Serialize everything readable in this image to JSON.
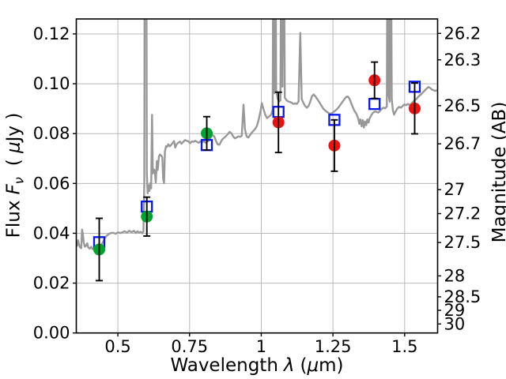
{
  "figure": {
    "background": "#ffffff",
    "xlabel": {
      "word": "Wavelength",
      "symbol": "λ",
      "unit_open": "(",
      "unit_mu": "μ",
      "unit_close": "m)"
    },
    "ylabel": {
      "word": "Flux",
      "symbol": "F",
      "symbol_sub": "ν",
      "unit_open": "( ",
      "unit_mu": "μ",
      "unit_close": "Jy )"
    },
    "ylabel_right": "Magnitude (AB)"
  },
  "chart_data": {
    "type": "line+scatter",
    "title": "",
    "xlabel": "Wavelength λ (μm)",
    "ylabel_left": "Flux Fν ( μJy )",
    "ylabel_right": "Magnitude (AB)",
    "xlim": [
      0.355,
      1.615
    ],
    "ylim": [
      0,
      0.126
    ],
    "grid": true,
    "legend": "none",
    "colors": {
      "spectrum": "#989898",
      "green": "#00A42E",
      "red": "#F01010",
      "blue": "#0516EE",
      "grid": "#b9b9b9",
      "axis": "#000000",
      "errorbar": "#000000"
    },
    "x_ticks": [
      {
        "value": 0.5,
        "label": "0.5"
      },
      {
        "value": 0.75,
        "label": "0.75"
      },
      {
        "value": 1.0,
        "label": "1"
      },
      {
        "value": 1.25,
        "label": "1.25"
      },
      {
        "value": 1.5,
        "label": "1.5"
      }
    ],
    "y_ticks_left": [
      {
        "value": 0.0,
        "label": "0.00"
      },
      {
        "value": 0.02,
        "label": "0.02"
      },
      {
        "value": 0.04,
        "label": "0.04"
      },
      {
        "value": 0.06,
        "label": "0.06"
      },
      {
        "value": 0.08,
        "label": "0.08"
      },
      {
        "value": 0.1,
        "label": "0.10"
      },
      {
        "value": 0.12,
        "label": "0.12"
      }
    ],
    "y_ticks_right": [
      {
        "label": "26.2",
        "flux": 0.1202
      },
      {
        "label": "26.3",
        "flux": 0.1096
      },
      {
        "label": "26.5",
        "flux": 0.0912
      },
      {
        "label": "26.7",
        "flux": 0.0759
      },
      {
        "label": "27",
        "flux": 0.0575
      },
      {
        "label": "27.2",
        "flux": 0.0479
      },
      {
        "label": "27.5",
        "flux": 0.0363
      },
      {
        "label": "28",
        "flux": 0.0229
      },
      {
        "label": "28.5",
        "flux": 0.0145
      },
      {
        "label": "29",
        "flux": 0.0091
      },
      {
        "label": "30",
        "flux": 0.0036
      }
    ],
    "series": {
      "photometry_observed": [
        {
          "x": 0.435,
          "y": 0.0335,
          "yerr": 0.0125,
          "color_key": "green"
        },
        {
          "x": 0.601,
          "y": 0.0467,
          "yerr": 0.0078,
          "color_key": "green"
        },
        {
          "x": 0.81,
          "y": 0.0801,
          "yerr": 0.0067,
          "color_key": "green"
        },
        {
          "x": 1.06,
          "y": 0.0845,
          "yerr": 0.0121,
          "color_key": "red"
        },
        {
          "x": 1.255,
          "y": 0.0752,
          "yerr": 0.0103,
          "color_key": "red"
        },
        {
          "x": 1.395,
          "y": 0.1014,
          "yerr": 0.0073,
          "color_key": "red"
        },
        {
          "x": 1.535,
          "y": 0.0901,
          "yerr": 0.0102,
          "color_key": "red"
        }
      ],
      "photometry_model": [
        {
          "x": 0.435,
          "y": 0.0364
        },
        {
          "x": 0.601,
          "y": 0.0507
        },
        {
          "x": 0.81,
          "y": 0.0754
        },
        {
          "x": 1.06,
          "y": 0.0887
        },
        {
          "x": 1.255,
          "y": 0.0855
        },
        {
          "x": 1.395,
          "y": 0.0919
        },
        {
          "x": 1.535,
          "y": 0.0988
        }
      ],
      "spectrum": [
        [
          0.355,
          0.0358
        ],
        [
          0.358,
          0.035
        ],
        [
          0.361,
          0.0372
        ],
        [
          0.364,
          0.0356
        ],
        [
          0.368,
          0.0344
        ],
        [
          0.372,
          0.034
        ],
        [
          0.375,
          0.0415
        ],
        [
          0.378,
          0.0398
        ],
        [
          0.381,
          0.0362
        ],
        [
          0.385,
          0.0346
        ],
        [
          0.389,
          0.035
        ],
        [
          0.393,
          0.036
        ],
        [
          0.397,
          0.0343
        ],
        [
          0.402,
          0.0338
        ],
        [
          0.407,
          0.0346
        ],
        [
          0.412,
          0.0336
        ],
        [
          0.418,
          0.0341
        ],
        [
          0.424,
          0.0334
        ],
        [
          0.43,
          0.0337
        ],
        [
          0.436,
          0.0343
        ],
        [
          0.442,
          0.0351
        ],
        [
          0.448,
          0.0364
        ],
        [
          0.454,
          0.0379
        ],
        [
          0.461,
          0.039
        ],
        [
          0.468,
          0.0397
        ],
        [
          0.476,
          0.0401
        ],
        [
          0.484,
          0.0402
        ],
        [
          0.492,
          0.0398
        ],
        [
          0.5,
          0.0404
        ],
        [
          0.508,
          0.0401
        ],
        [
          0.516,
          0.0404
        ],
        [
          0.524,
          0.0408
        ],
        [
          0.532,
          0.0403
        ],
        [
          0.54,
          0.041
        ],
        [
          0.548,
          0.0404
        ],
        [
          0.556,
          0.041
        ],
        [
          0.562,
          0.0401
        ],
        [
          0.568,
          0.0408
        ],
        [
          0.574,
          0.0403
        ],
        [
          0.58,
          0.0406
        ],
        [
          0.585,
          0.04
        ],
        [
          0.589,
          0.0406
        ],
        [
          0.592,
          0.06
        ],
        [
          0.594,
          0.2
        ],
        [
          0.599,
          0.2
        ],
        [
          0.601,
          0.064
        ],
        [
          0.604,
          0.056
        ],
        [
          0.607,
          0.0592
        ],
        [
          0.61,
          0.057
        ],
        [
          0.613,
          0.0601
        ],
        [
          0.616,
          0.058
        ],
        [
          0.619,
          0.0875
        ],
        [
          0.622,
          0.064
        ],
        [
          0.626,
          0.0656
        ],
        [
          0.629,
          0.0648
        ],
        [
          0.632,
          0.0604
        ],
        [
          0.636,
          0.069
        ],
        [
          0.639,
          0.0654
        ],
        [
          0.643,
          0.0708
        ],
        [
          0.647,
          0.0716
        ],
        [
          0.651,
          0.0712
        ],
        [
          0.655,
          0.0704
        ],
        [
          0.658,
          0.0618
        ],
        [
          0.661,
          0.0601
        ],
        [
          0.664,
          0.0728
        ],
        [
          0.668,
          0.075
        ],
        [
          0.672,
          0.0747
        ],
        [
          0.676,
          0.0757
        ],
        [
          0.681,
          0.0749
        ],
        [
          0.686,
          0.0755
        ],
        [
          0.691,
          0.0763
        ],
        [
          0.696,
          0.077
        ],
        [
          0.7,
          0.0744
        ],
        [
          0.705,
          0.0757
        ],
        [
          0.71,
          0.0763
        ],
        [
          0.716,
          0.0768
        ],
        [
          0.722,
          0.0759
        ],
        [
          0.728,
          0.0767
        ],
        [
          0.734,
          0.0774
        ],
        [
          0.74,
          0.0771
        ],
        [
          0.746,
          0.0769
        ],
        [
          0.752,
          0.0761
        ],
        [
          0.758,
          0.0769
        ],
        [
          0.764,
          0.0767
        ],
        [
          0.77,
          0.0771
        ],
        [
          0.776,
          0.0767
        ],
        [
          0.782,
          0.0763
        ],
        [
          0.788,
          0.0769
        ],
        [
          0.794,
          0.0765
        ],
        [
          0.8,
          0.0769
        ],
        [
          0.806,
          0.0763
        ],
        [
          0.812,
          0.0767
        ],
        [
          0.818,
          0.0774
        ],
        [
          0.824,
          0.0784
        ],
        [
          0.83,
          0.0794
        ],
        [
          0.836,
          0.0789
        ],
        [
          0.842,
          0.0771
        ],
        [
          0.848,
          0.0757
        ],
        [
          0.854,
          0.0755
        ],
        [
          0.86,
          0.0769
        ],
        [
          0.866,
          0.0779
        ],
        [
          0.872,
          0.0784
        ],
        [
          0.878,
          0.0791
        ],
        [
          0.884,
          0.0799
        ],
        [
          0.89,
          0.0807
        ],
        [
          0.896,
          0.0801
        ],
        [
          0.902,
          0.0789
        ],
        [
          0.908,
          0.0781
        ],
        [
          0.914,
          0.0784
        ],
        [
          0.92,
          0.0789
        ],
        [
          0.926,
          0.0787
        ],
        [
          0.932,
          0.0791
        ],
        [
          0.938,
          0.0916
        ],
        [
          0.943,
          0.0818
        ],
        [
          0.949,
          0.0789
        ],
        [
          0.955,
          0.0784
        ],
        [
          0.961,
          0.0794
        ],
        [
          0.967,
          0.0804
        ],
        [
          0.973,
          0.0811
        ],
        [
          0.979,
          0.0819
        ],
        [
          0.985,
          0.0831
        ],
        [
          0.991,
          0.0856
        ],
        [
          0.997,
          0.0888
        ],
        [
          1.002,
          0.0922
        ],
        [
          1.008,
          0.0898
        ],
        [
          1.014,
          0.0876
        ],
        [
          1.02,
          0.0862
        ],
        [
          1.027,
          0.0868
        ],
        [
          1.034,
          0.0875
        ],
        [
          1.04,
          0.0896
        ],
        [
          1.043,
          0.2
        ],
        [
          1.046,
          0.0962
        ],
        [
          1.049,
          0.2
        ],
        [
          1.052,
          0.0978
        ],
        [
          1.057,
          0.094
        ],
        [
          1.062,
          0.0928
        ],
        [
          1.067,
          0.0934
        ],
        [
          1.071,
          0.2
        ],
        [
          1.074,
          0.0988
        ],
        [
          1.078,
          0.2
        ],
        [
          1.082,
          0.0944
        ],
        [
          1.088,
          0.0934
        ],
        [
          1.094,
          0.0929
        ],
        [
          1.1,
          0.0927
        ],
        [
          1.106,
          0.0924
        ],
        [
          1.112,
          0.0919
        ],
        [
          1.118,
          0.0921
        ],
        [
          1.124,
          0.0919
        ],
        [
          1.13,
          0.0928
        ],
        [
          1.136,
          0.1204
        ],
        [
          1.141,
          0.0938
        ],
        [
          1.147,
          0.0923
        ],
        [
          1.153,
          0.0911
        ],
        [
          1.159,
          0.0904
        ],
        [
          1.165,
          0.0911
        ],
        [
          1.171,
          0.0929
        ],
        [
          1.177,
          0.095
        ],
        [
          1.183,
          0.0957
        ],
        [
          1.189,
          0.0949
        ],
        [
          1.195,
          0.0939
        ],
        [
          1.201,
          0.0929
        ],
        [
          1.209,
          0.0914
        ],
        [
          1.217,
          0.0899
        ],
        [
          1.225,
          0.0891
        ],
        [
          1.233,
          0.0884
        ],
        [
          1.241,
          0.0879
        ],
        [
          1.249,
          0.0884
        ],
        [
          1.257,
          0.0891
        ],
        [
          1.265,
          0.0899
        ],
        [
          1.273,
          0.0911
        ],
        [
          1.281,
          0.0924
        ],
        [
          1.289,
          0.0937
        ],
        [
          1.296,
          0.0947
        ],
        [
          1.302,
          0.0949
        ],
        [
          1.308,
          0.0939
        ],
        [
          1.314,
          0.0921
        ],
        [
          1.32,
          0.0904
        ],
        [
          1.326,
          0.0889
        ],
        [
          1.332,
          0.0879
        ],
        [
          1.338,
          0.0861
        ],
        [
          1.342,
          0.0839
        ],
        [
          1.346,
          0.0857
        ],
        [
          1.35,
          0.0829
        ],
        [
          1.354,
          0.0854
        ],
        [
          1.358,
          0.0824
        ],
        [
          1.362,
          0.0849
        ],
        [
          1.366,
          0.0834
        ],
        [
          1.37,
          0.0857
        ],
        [
          1.374,
          0.0844
        ],
        [
          1.378,
          0.0861
        ],
        [
          1.384,
          0.0874
        ],
        [
          1.39,
          0.0884
        ],
        [
          1.396,
          0.0889
        ],
        [
          1.402,
          0.0887
        ],
        [
          1.408,
          0.0884
        ],
        [
          1.414,
          0.0891
        ],
        [
          1.42,
          0.0899
        ],
        [
          1.426,
          0.0904
        ],
        [
          1.432,
          0.0901
        ],
        [
          1.438,
          0.0909
        ],
        [
          1.441,
          0.2
        ],
        [
          1.444,
          0.0958
        ],
        [
          1.448,
          0.0928
        ],
        [
          1.451,
          0.2
        ],
        [
          1.455,
          0.0938
        ],
        [
          1.459,
          0.0894
        ],
        [
          1.463,
          0.0876
        ],
        [
          1.469,
          0.0889
        ],
        [
          1.475,
          0.0901
        ],
        [
          1.481,
          0.0907
        ],
        [
          1.487,
          0.0904
        ],
        [
          1.493,
          0.0911
        ],
        [
          1.499,
          0.0917
        ],
        [
          1.505,
          0.0914
        ],
        [
          1.511,
          0.0919
        ],
        [
          1.517,
          0.0915
        ],
        [
          1.523,
          0.0919
        ],
        [
          1.529,
          0.0927
        ],
        [
          1.535,
          0.0934
        ],
        [
          1.541,
          0.0939
        ],
        [
          1.547,
          0.0947
        ],
        [
          1.553,
          0.0954
        ],
        [
          1.559,
          0.0959
        ],
        [
          1.565,
          0.0967
        ],
        [
          1.571,
          0.0974
        ],
        [
          1.577,
          0.0981
        ],
        [
          1.583,
          0.0987
        ],
        [
          1.589,
          0.0983
        ],
        [
          1.595,
          0.0977
        ],
        [
          1.601,
          0.0974
        ],
        [
          1.607,
          0.0971
        ],
        [
          1.613,
          0.0975
        ]
      ]
    }
  }
}
